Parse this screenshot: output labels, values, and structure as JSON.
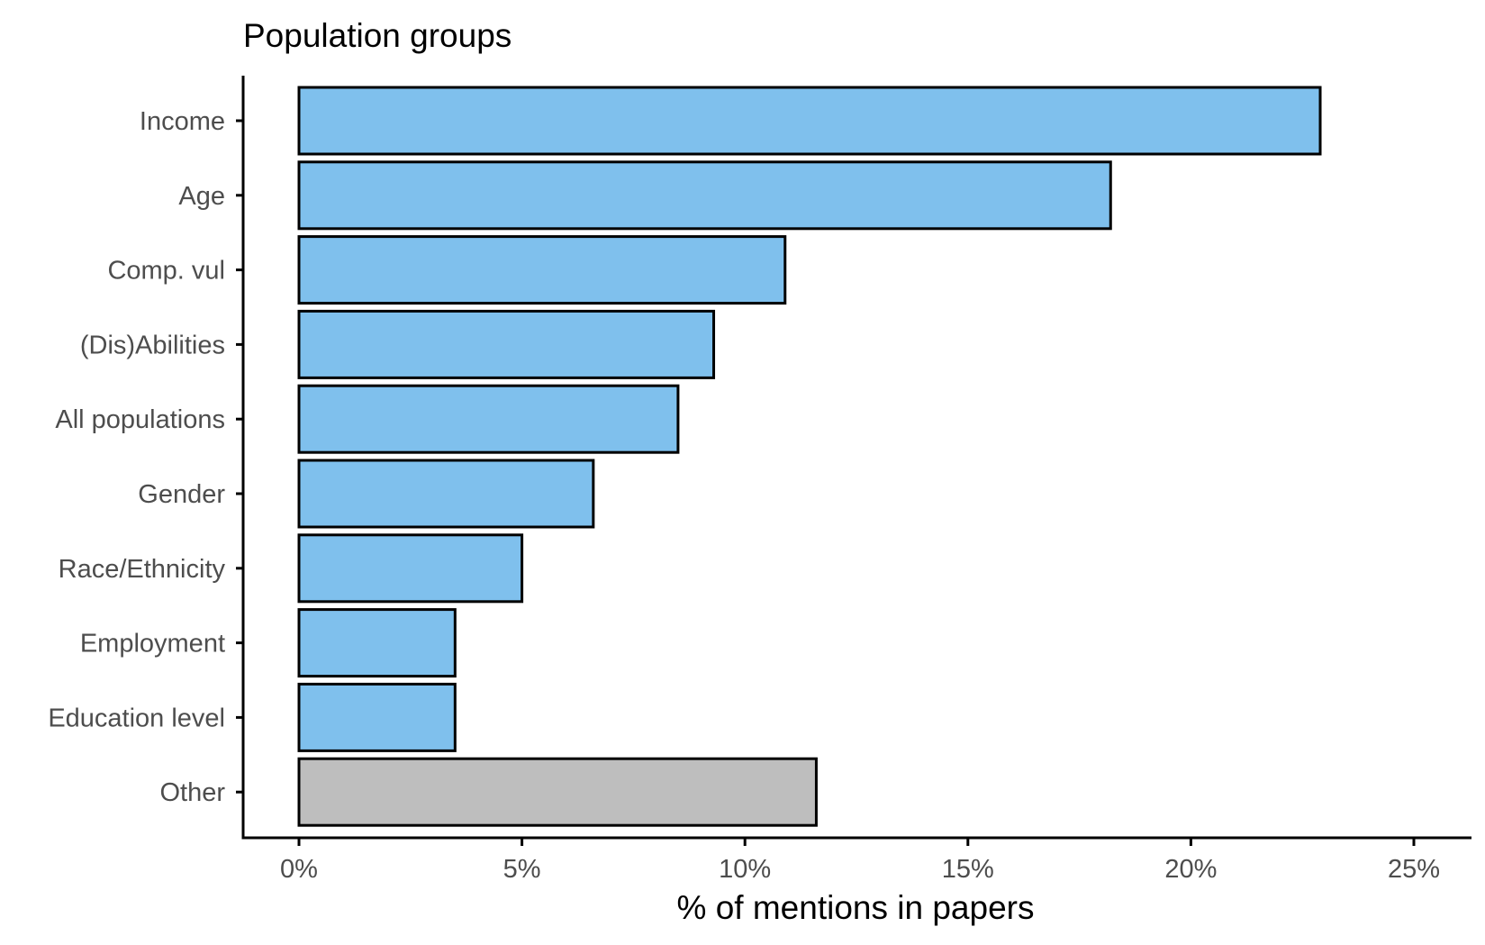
{
  "chart_data": {
    "type": "bar",
    "orientation": "horizontal",
    "title": "Population groups",
    "xlabel": "% of mentions in papers",
    "ylabel": "",
    "categories": [
      "Income",
      "Age",
      "Comp. vul",
      "(Dis)Abilities",
      "All populations",
      "Gender",
      "Race/Ethnicity",
      "Employment",
      "Education level",
      "Other"
    ],
    "values": [
      22.9,
      18.2,
      10.9,
      9.3,
      8.5,
      6.6,
      5.0,
      3.5,
      3.5,
      11.6
    ],
    "bar_colors": [
      "#7fc0ed",
      "#7fc0ed",
      "#7fc0ed",
      "#7fc0ed",
      "#7fc0ed",
      "#7fc0ed",
      "#7fc0ed",
      "#7fc0ed",
      "#7fc0ed",
      "#bebebe"
    ],
    "xlim": [
      0,
      25
    ],
    "xticks": [
      0,
      5,
      10,
      15,
      20,
      25
    ],
    "xtick_labels": [
      "0%",
      "5%",
      "10%",
      "15%",
      "20%",
      "25%"
    ],
    "grid": false,
    "legend": "none"
  }
}
